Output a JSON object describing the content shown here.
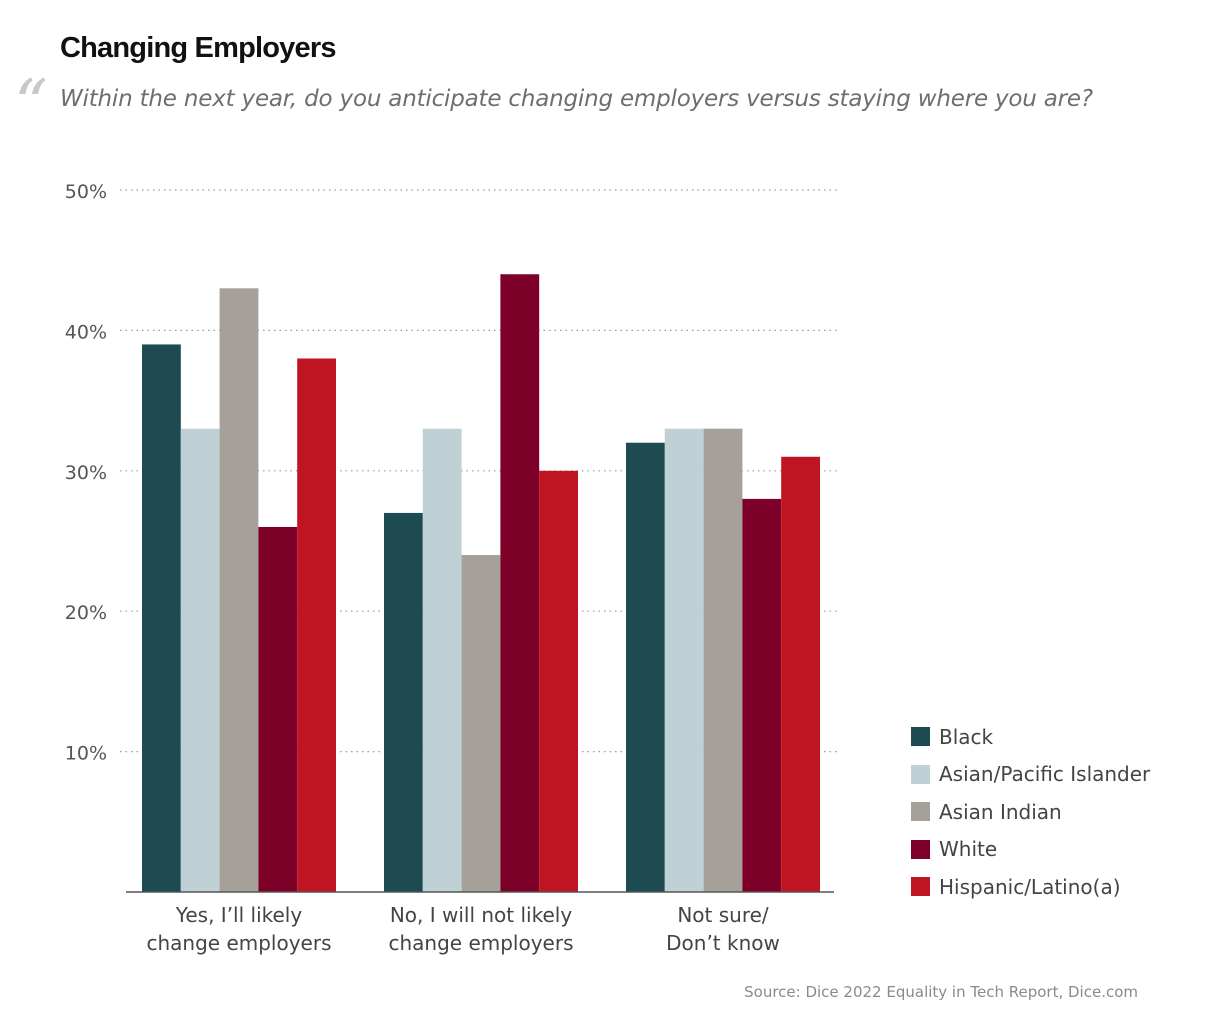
{
  "title": "Changing Employers",
  "subtitle": "Within the next year, do you anticipate changing employers versus staying where you are?",
  "quote_mark": "“",
  "source": "Source: Dice 2022 Equality in Tech Report, Dice.com",
  "chart_data": {
    "type": "bar",
    "categories": [
      [
        "Yes, I’ll likely",
        "change employers"
      ],
      [
        "No, I will not likely",
        "change employers"
      ],
      [
        "Not sure/",
        "Don’t know"
      ]
    ],
    "series": [
      {
        "name": "Black",
        "color": "#1e4a52",
        "values": [
          39,
          27,
          32
        ]
      },
      {
        "name": "Asian/Pacific Islander",
        "color": "#bfd1d5",
        "values": [
          33,
          33,
          33
        ]
      },
      {
        "name": "Asian Indian",
        "color": "#a5a19a",
        "values": [
          43,
          24,
          33
        ]
      },
      {
        "name": "White",
        "color": "#7d0028",
        "values": [
          26,
          44,
          28
        ]
      },
      {
        "name": "Hispanic/Latino(a)",
        "color": "#bf1522",
        "values": [
          38,
          30,
          31
        ]
      }
    ],
    "yticks": [
      "10%",
      "20%",
      "30%",
      "40%",
      "50%"
    ],
    "ytick_values": [
      10,
      20,
      30,
      40,
      50
    ],
    "ylim": [
      0,
      50
    ],
    "grid": true,
    "legend_position": "bottom-right"
  }
}
